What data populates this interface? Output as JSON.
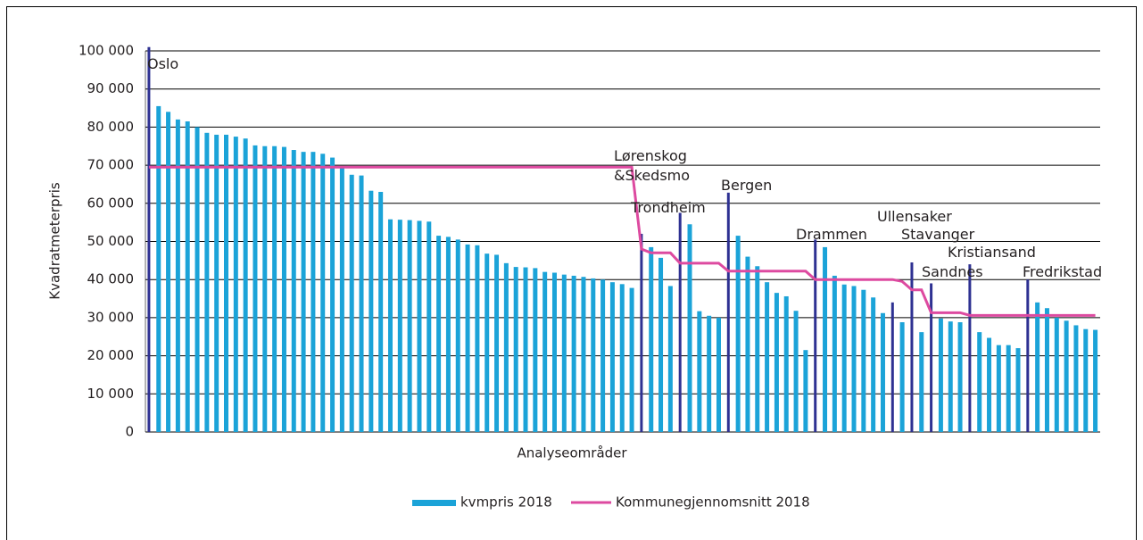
{
  "chart_data": {
    "type": "bar",
    "x_label": "Analyseområder",
    "y_label": "Kvadratmeterpris",
    "categories": [
      "Oslo",
      null,
      null,
      null,
      null,
      null,
      null,
      null,
      null,
      null,
      null,
      null,
      null,
      null,
      null,
      null,
      null,
      null,
      null,
      null,
      null,
      null,
      null,
      null,
      null,
      null,
      null,
      null,
      null,
      null,
      null,
      null,
      null,
      null,
      null,
      null,
      null,
      null,
      null,
      null,
      null,
      null,
      null,
      null,
      null,
      null,
      null,
      null,
      null,
      null,
      null,
      "Lørenskog\n&Skedsmo",
      null,
      null,
      null,
      "Trondheim",
      null,
      null,
      null,
      null,
      "Bergen",
      null,
      null,
      null,
      null,
      null,
      null,
      null,
      null,
      "Drammen",
      null,
      null,
      null,
      null,
      null,
      null,
      null,
      "Ullensaker",
      null,
      "Stavanger",
      null,
      "Sandnes",
      null,
      null,
      null,
      "Kristiansand",
      null,
      null,
      null,
      null,
      null,
      "Fredrikstad",
      null,
      null,
      null,
      null,
      null,
      null,
      null
    ],
    "series": [
      {
        "name": "kvmpris 2018",
        "type": "bar",
        "color": "#1ba3d8",
        "highlight_color": "#2e3192",
        "values": [
          101000,
          85500,
          84000,
          82000,
          81500,
          80000,
          78500,
          78000,
          78000,
          77500,
          77000,
          75200,
          75000,
          75000,
          74800,
          74000,
          73500,
          73500,
          73000,
          72000,
          69500,
          67500,
          67300,
          63300,
          63000,
          55800,
          55700,
          55600,
          55400,
          55200,
          51500,
          51200,
          50500,
          49200,
          49000,
          46800,
          46500,
          44300,
          43300,
          43200,
          43000,
          42000,
          41800,
          41300,
          41000,
          40700,
          40300,
          40000,
          39300,
          38800,
          37800,
          52000,
          48500,
          45700,
          38300,
          57500,
          54500,
          31700,
          30500,
          30000,
          62800,
          51500,
          46000,
          43500,
          39300,
          36500,
          35600,
          31800,
          21500,
          50500,
          48500,
          41000,
          38700,
          38300,
          37300,
          35300,
          31200,
          34000,
          28800,
          44500,
          26200,
          39000,
          29800,
          29000,
          28800,
          44000,
          26200,
          24700,
          22800,
          22800,
          22000,
          40000,
          34000,
          32500,
          30000,
          29200,
          28000,
          27000,
          26800
        ]
      },
      {
        "name": "Kommunegjennomsnitt 2018",
        "type": "line",
        "color": "#dd4aa0",
        "values": [
          69500,
          69500,
          69500,
          69500,
          69500,
          69500,
          69500,
          69500,
          69500,
          69500,
          69500,
          69500,
          69500,
          69500,
          69500,
          69500,
          69500,
          69500,
          69500,
          69500,
          69500,
          69500,
          69500,
          69500,
          69500,
          69500,
          69500,
          69500,
          69500,
          69500,
          69500,
          69500,
          69500,
          69500,
          69500,
          69500,
          69500,
          69500,
          69500,
          69500,
          69500,
          69500,
          69500,
          69500,
          69500,
          69500,
          69500,
          69500,
          69500,
          69500,
          69500,
          48000,
          47000,
          47000,
          47000,
          44300,
          44300,
          44300,
          44300,
          44300,
          42200,
          42200,
          42200,
          42200,
          42200,
          42200,
          42200,
          42200,
          42200,
          40000,
          40000,
          40000,
          40000,
          40000,
          40000,
          40000,
          40000,
          40000,
          39500,
          37300,
          37300,
          31300,
          31300,
          31300,
          31300,
          30600,
          30600,
          30600,
          30600,
          30600,
          30600,
          30600,
          30600,
          30600,
          30600,
          30600,
          30600,
          30600,
          30600
        ]
      }
    ],
    "ylim": [
      0,
      100000
    ],
    "yticks": [
      0,
      {
        "value": 10000,
        "label": "10 000"
      },
      {
        "value": 20000,
        "label": "20 000"
      },
      {
        "value": 30000,
        "label": "30 000"
      },
      {
        "value": 40000,
        "label": "40 000"
      },
      {
        "value": 50000,
        "label": "50 000"
      },
      {
        "value": 60000,
        "label": "60 000"
      },
      {
        "value": 70000,
        "label": "70 000"
      },
      {
        "value": 80000,
        "label": "80 000"
      },
      {
        "value": 90000,
        "label": "90 000"
      },
      {
        "value": 100000,
        "label": "100 000"
      }
    ],
    "grid": true,
    "legend": "bottom"
  }
}
